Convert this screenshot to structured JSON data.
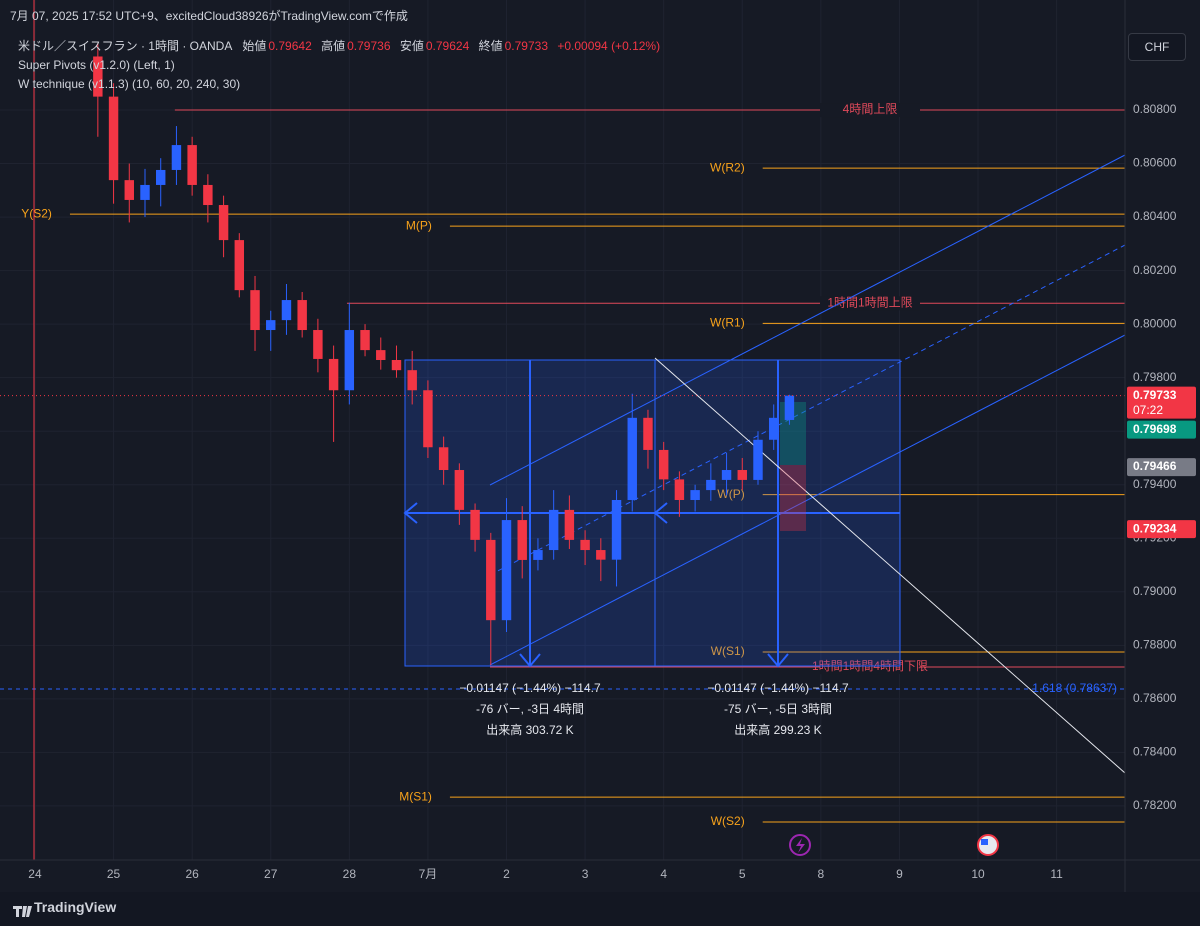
{
  "header": {
    "caption": "7月 07, 2025 17:52 UTC+9、excitedCloud38926がTradingView.comで作成"
  },
  "toolbar": {
    "currency": "CHF"
  },
  "chart_data": {
    "type": "candlestick",
    "legend": {
      "symbol": "米ドル／スイスフラン · 1時間 · OANDA",
      "open_label": "始値",
      "high_label": "高値",
      "low_label": "安値",
      "close_label": "終値",
      "change": "+0.00094 (+0.12%)"
    },
    "indicators": [
      "Super Pivots (v1.2.0) (Left, 1)",
      "W technique (v1.1.3) (10, 60, 20, 240, 30)"
    ],
    "up_color": "#2962ff",
    "down_color": "#f23645",
    "x": [
      0.8,
      1.0,
      1.2,
      1.4,
      1.6,
      1.8,
      2.0,
      2.2,
      2.4,
      2.6,
      2.8,
      3.0,
      3.2,
      3.4,
      3.6,
      3.8,
      4.0,
      4.2,
      4.4,
      4.6,
      4.8,
      5.0,
      5.2,
      5.4,
      5.6,
      5.8,
      6.0,
      6.2,
      6.4,
      6.6,
      6.8,
      7.0,
      7.2,
      7.4,
      7.6,
      7.8,
      8.0,
      8.2,
      8.4,
      8.6,
      8.8,
      9.0,
      9.2,
      9.4,
      9.6
    ],
    "open": [
      0.81,
      0.8085,
      0.80538,
      0.80464,
      0.8052,
      0.80576,
      0.80669,
      0.8052,
      0.80445,
      0.80314,
      0.80127,
      0.79978,
      0.80015,
      0.8009,
      0.79978,
      0.7987,
      0.79753,
      0.79978,
      0.79903,
      0.79866,
      0.79828,
      0.79753,
      0.7954,
      0.79455,
      0.79306,
      0.79194,
      0.78894,
      0.79268,
      0.79119,
      0.79156,
      0.79306,
      0.79194,
      0.79156,
      0.7912,
      0.79343,
      0.7965,
      0.7953,
      0.7942,
      0.79343,
      0.7938,
      0.79418,
      0.79455,
      0.79418,
      0.79568,
      0.79642
    ],
    "high": [
      0.8105,
      0.809,
      0.806,
      0.8058,
      0.8062,
      0.8074,
      0.807,
      0.8056,
      0.8048,
      0.8034,
      0.8018,
      0.8005,
      0.8015,
      0.8012,
      0.8002,
      0.7992,
      0.8008,
      0.8,
      0.7995,
      0.7992,
      0.799,
      0.7979,
      0.7958,
      0.7948,
      0.7933,
      0.7922,
      0.7935,
      0.7932,
      0.792,
      0.7938,
      0.7936,
      0.7923,
      0.792,
      0.7938,
      0.7974,
      0.7968,
      0.7956,
      0.7945,
      0.794,
      0.7948,
      0.7952,
      0.795,
      0.796,
      0.797,
      0.79736
    ],
    "low": [
      0.807,
      0.8045,
      0.8038,
      0.804,
      0.8044,
      0.8052,
      0.8048,
      0.8038,
      0.8025,
      0.801,
      0.799,
      0.799,
      0.7996,
      0.7995,
      0.7982,
      0.7956,
      0.797,
      0.7988,
      0.7983,
      0.798,
      0.797,
      0.795,
      0.794,
      0.7925,
      0.7915,
      0.78726,
      0.7885,
      0.7905,
      0.7908,
      0.7912,
      0.7916,
      0.791,
      0.7904,
      0.7902,
      0.793,
      0.7946,
      0.7938,
      0.7928,
      0.793,
      0.7934,
      0.7936,
      0.7938,
      0.794,
      0.7953,
      0.79624
    ],
    "close": [
      0.8085,
      0.80538,
      0.80464,
      0.8052,
      0.80576,
      0.80669,
      0.8052,
      0.80445,
      0.80314,
      0.80127,
      0.79978,
      0.80015,
      0.8009,
      0.79978,
      0.7987,
      0.79753,
      0.79978,
      0.79903,
      0.79866,
      0.79828,
      0.79753,
      0.7954,
      0.79455,
      0.79306,
      0.79194,
      0.78894,
      0.79268,
      0.79119,
      0.79156,
      0.79306,
      0.79194,
      0.79156,
      0.7912,
      0.79343,
      0.7965,
      0.7953,
      0.7942,
      0.79343,
      0.7938,
      0.79418,
      0.79455,
      0.79418,
      0.79568,
      0.7965,
      0.79733
    ],
    "xlim": [
      -0.445,
      13.87
    ],
    "xticks": [
      {
        "value": 0,
        "label": "24"
      },
      {
        "value": 1,
        "label": "25"
      },
      {
        "value": 2,
        "label": "26"
      },
      {
        "value": 3,
        "label": "27"
      },
      {
        "value": 4,
        "label": "28"
      },
      {
        "value": 5,
        "label": "7月"
      },
      {
        "value": 6,
        "label": "2"
      },
      {
        "value": 7,
        "label": "3"
      },
      {
        "value": 8,
        "label": "4"
      },
      {
        "value": 9,
        "label": "5"
      },
      {
        "value": 10,
        "label": "8"
      },
      {
        "value": 11,
        "label": "9"
      },
      {
        "value": 12,
        "label": "10"
      },
      {
        "value": 13,
        "label": "11"
      }
    ],
    "ylim": [
      0.77998,
      0.81211
    ],
    "yticks": [
      {
        "value": 0.782,
        "label": "0.78200"
      },
      {
        "value": 0.784,
        "label": "0.78400"
      },
      {
        "value": 0.786,
        "label": "0.78600"
      },
      {
        "value": 0.788,
        "label": "0.78800"
      },
      {
        "value": 0.79,
        "label": "0.79000"
      },
      {
        "value": 0.792,
        "label": "0.79200"
      },
      {
        "value": 0.794,
        "label": "0.79400"
      },
      {
        "value": 0.796,
        "label": "0.79600"
      },
      {
        "value": 0.798,
        "label": "0.79800"
      },
      {
        "value": 0.8,
        "label": "0.80000"
      },
      {
        "value": 0.802,
        "label": "0.80200"
      },
      {
        "value": 0.804,
        "label": "0.80400"
      },
      {
        "value": 0.806,
        "label": "0.80600"
      },
      {
        "value": 0.808,
        "label": "0.80800"
      }
    ],
    "grid": true,
    "levels": [
      {
        "label": "4時間上限",
        "value": 0.808,
        "start": 1.78,
        "color": "#e0495a",
        "label_pos": "line"
      },
      {
        "label": "W(R2)",
        "value": 0.80583,
        "start": 9.26,
        "color": "#f7a21b",
        "label_pos": "left"
      },
      {
        "label": "Y(S2)",
        "value": 0.80411,
        "start": 0.445,
        "color": "#f7a21b",
        "label_pos": "left"
      },
      {
        "label": "M(P)",
        "value": 0.80366,
        "start": 5.28,
        "color": "#f7a21b",
        "label_pos": "left"
      },
      {
        "label": "1時間1時間上限",
        "value": 0.80078,
        "start": 3.97,
        "color": "#e0495a",
        "label_pos": "line"
      },
      {
        "label": "W(R1)",
        "value": 0.80003,
        "start": 9.26,
        "color": "#f7a21b",
        "label_pos": "left"
      },
      {
        "label": "W(P)",
        "value": 0.79363,
        "start": 9.26,
        "color": "#f7a21b",
        "label_pos": "left"
      },
      {
        "label": "W(S1)",
        "value": 0.78775,
        "start": 9.26,
        "color": "#f7a21b",
        "label_pos": "left"
      },
      {
        "label": "1時間1時間4時間下限",
        "value": 0.78719,
        "start": 5.79,
        "color": "#e0495a",
        "label_pos": "line"
      },
      {
        "label": "1.618 (0.78637)",
        "value": 0.78637,
        "start": -0.445,
        "color": "#2962ff",
        "label_pos": "right",
        "dashed": true
      },
      {
        "label": "M(S1)",
        "value": 0.78233,
        "start": 5.28,
        "color": "#f7a21b",
        "label_pos": "left"
      },
      {
        "label": "W(S2)",
        "value": 0.7814,
        "start": 9.26,
        "color": "#f7a21b",
        "label_pos": "left"
      }
    ],
    "price_labels": [
      {
        "value": 0.79733,
        "color": "#f23645",
        "countdown": "07:22"
      },
      {
        "value": 0.79698,
        "color": "#089981"
      },
      {
        "value": 0.79466,
        "color": "#787b86"
      },
      {
        "value": 0.79234,
        "color": "#f23645"
      }
    ],
    "measurements": [
      {
        "lines": [
          "−0.01147 (−1.44%) −114.7",
          "-76 バー, -3日 4時間",
          "出来高 303.72 K"
        ]
      },
      {
        "lines": [
          "−0.01147 (−1.44%) −114.7",
          "-75 バー, -5日 3時間",
          "出来高 299.23 K"
        ]
      }
    ]
  },
  "footer": {
    "brand": "TradingView"
  }
}
